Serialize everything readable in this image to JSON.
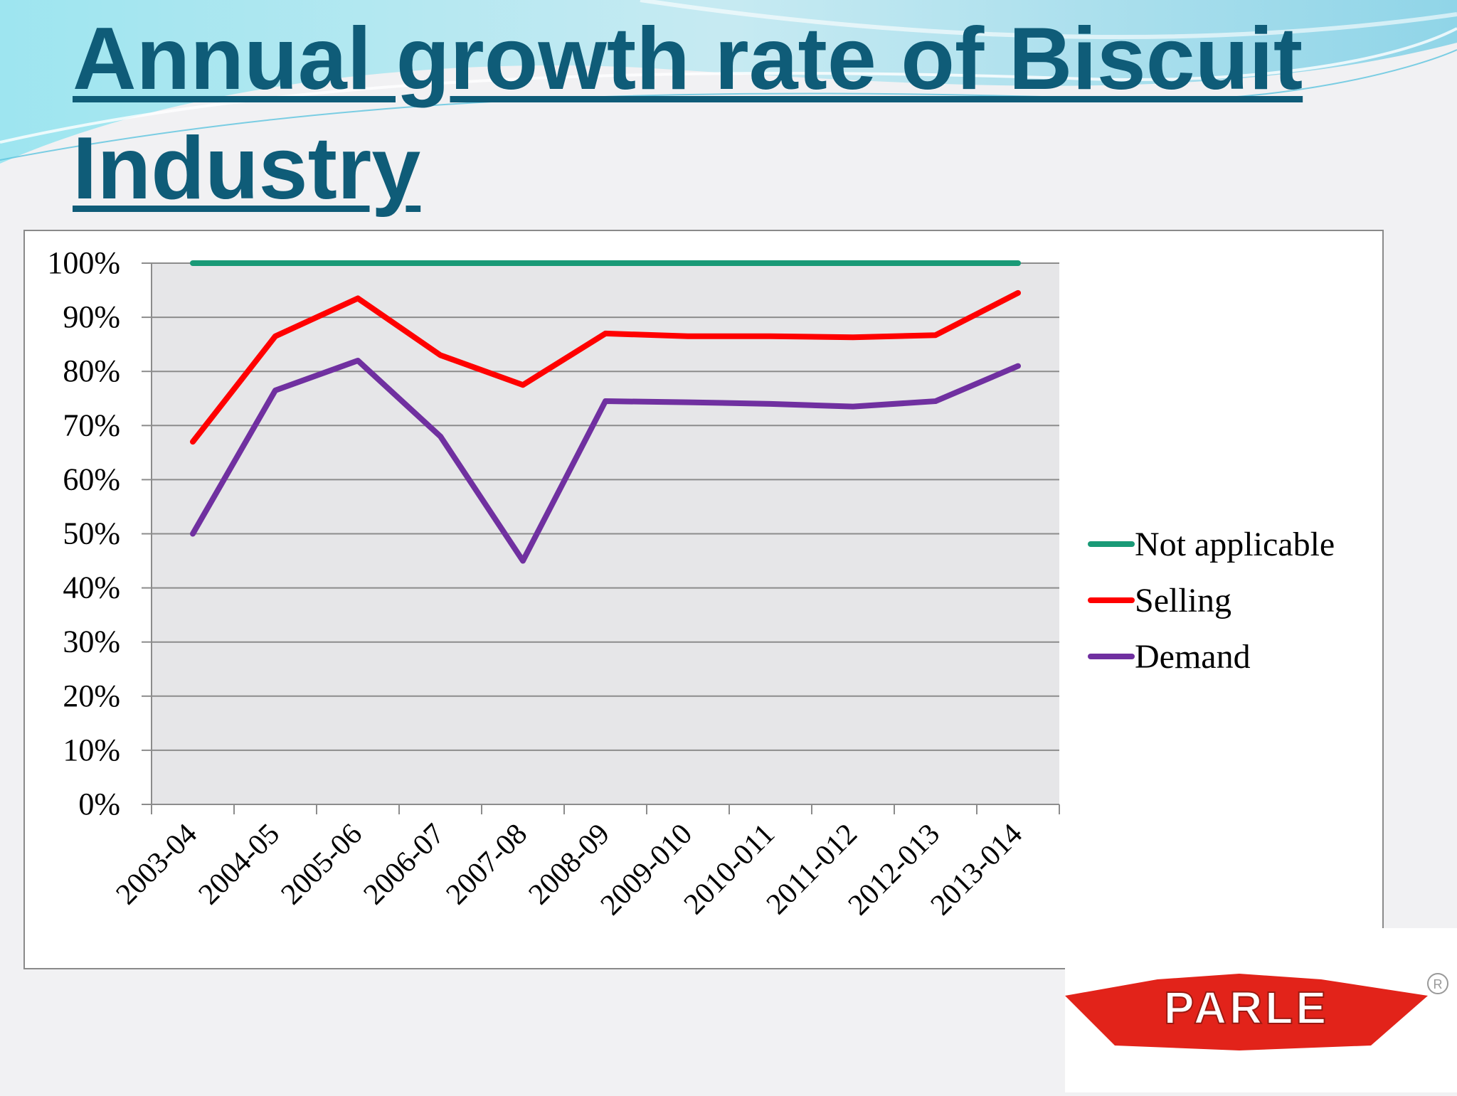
{
  "slide": {
    "title": "Annual growth rate of Biscuit Industry",
    "logo_text": "PARLE",
    "logo_mark": "R"
  },
  "colors": {
    "title": "#0f5c78",
    "plot_bg": "#e6e6e8",
    "not_applicable": "#1a9a77",
    "selling": "#ff0000",
    "demand": "#7030a0",
    "logo_red": "#e2231a"
  },
  "chart_data": {
    "type": "line",
    "title": "",
    "xlabel": "",
    "ylabel": "",
    "categories": [
      "2003-04",
      "2004-05",
      "2005-06",
      "2006-07",
      "2007-08",
      "2008-09",
      "2009-010",
      "2010-011",
      "2011-012",
      "2012-013",
      "2013-014"
    ],
    "ylim": [
      0,
      100
    ],
    "yticks": [
      "0%",
      "10%",
      "20%",
      "30%",
      "40%",
      "50%",
      "60%",
      "70%",
      "80%",
      "90%",
      "100%"
    ],
    "grid": true,
    "legend_position": "right",
    "series": [
      {
        "name": "Not applicable",
        "color": "#1a9a77",
        "values": [
          100,
          100,
          100,
          100,
          100,
          100,
          100,
          100,
          100,
          100,
          100
        ]
      },
      {
        "name": "Selling",
        "color": "#ff0000",
        "values": [
          67,
          86.5,
          93.5,
          83,
          77.5,
          87,
          86.5,
          86.5,
          86.3,
          86.7,
          94.5
        ]
      },
      {
        "name": "Demand",
        "color": "#7030a0",
        "values": [
          50,
          76.5,
          82,
          68,
          45,
          74.5,
          74.3,
          74,
          73.5,
          74.5,
          81
        ]
      }
    ]
  }
}
